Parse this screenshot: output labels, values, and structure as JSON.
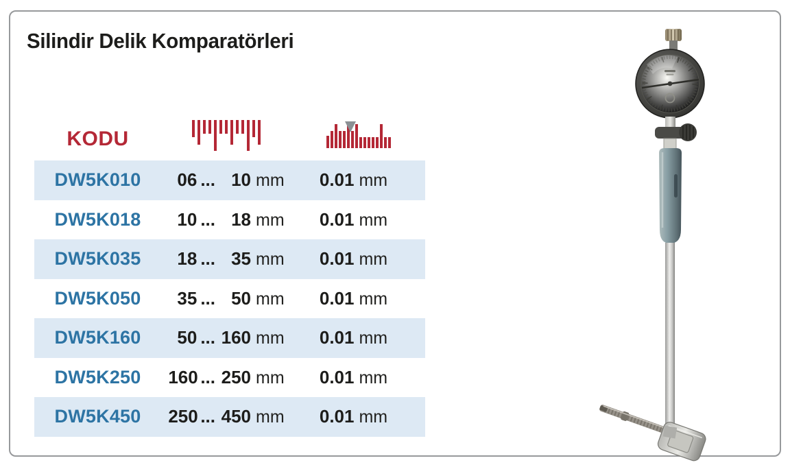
{
  "title": "Silindir Delik Komparatörleri",
  "table": {
    "header": {
      "code_label": "KODU"
    },
    "dots": "...",
    "unit": "mm",
    "rows": [
      {
        "code": "DW5K010",
        "range_from": "06",
        "range_to": "10",
        "resolution": "0.01"
      },
      {
        "code": "DW5K018",
        "range_from": "10",
        "range_to": "18",
        "resolution": "0.01"
      },
      {
        "code": "DW5K035",
        "range_from": "18",
        "range_to": "35",
        "resolution": "0.01"
      },
      {
        "code": "DW5K050",
        "range_from": "35",
        "range_to": "50",
        "resolution": "0.01"
      },
      {
        "code": "DW5K160",
        "range_from": "50",
        "range_to": "160",
        "resolution": "0.01"
      },
      {
        "code": "DW5K250",
        "range_from": "160",
        "range_to": "250",
        "resolution": "0.01"
      },
      {
        "code": "DW5K450",
        "range_from": "250",
        "range_to": "450",
        "resolution": "0.01"
      }
    ]
  },
  "icons": {
    "range_bars": [
      0.55,
      0.8,
      0.45,
      0.45,
      1,
      0.45,
      0.45,
      0.8,
      0.45,
      0.45,
      1,
      0.55,
      0.8
    ],
    "resolution_bars": [
      0.5,
      0.7,
      1,
      0.7,
      0.7,
      1,
      0.7,
      1,
      0.45,
      0.45,
      0.45,
      0.45,
      0.45,
      1,
      0.45,
      0.45
    ]
  },
  "image": {
    "alt": "dial-bore-gauge"
  },
  "colors": {
    "accent-red": "#b42836",
    "code-blue": "#2d74a4",
    "row-blue": "#dde9f4",
    "text-black": "#1d1d1b",
    "pointer-gray": "#8b9094",
    "border-gray": "#97999b"
  }
}
